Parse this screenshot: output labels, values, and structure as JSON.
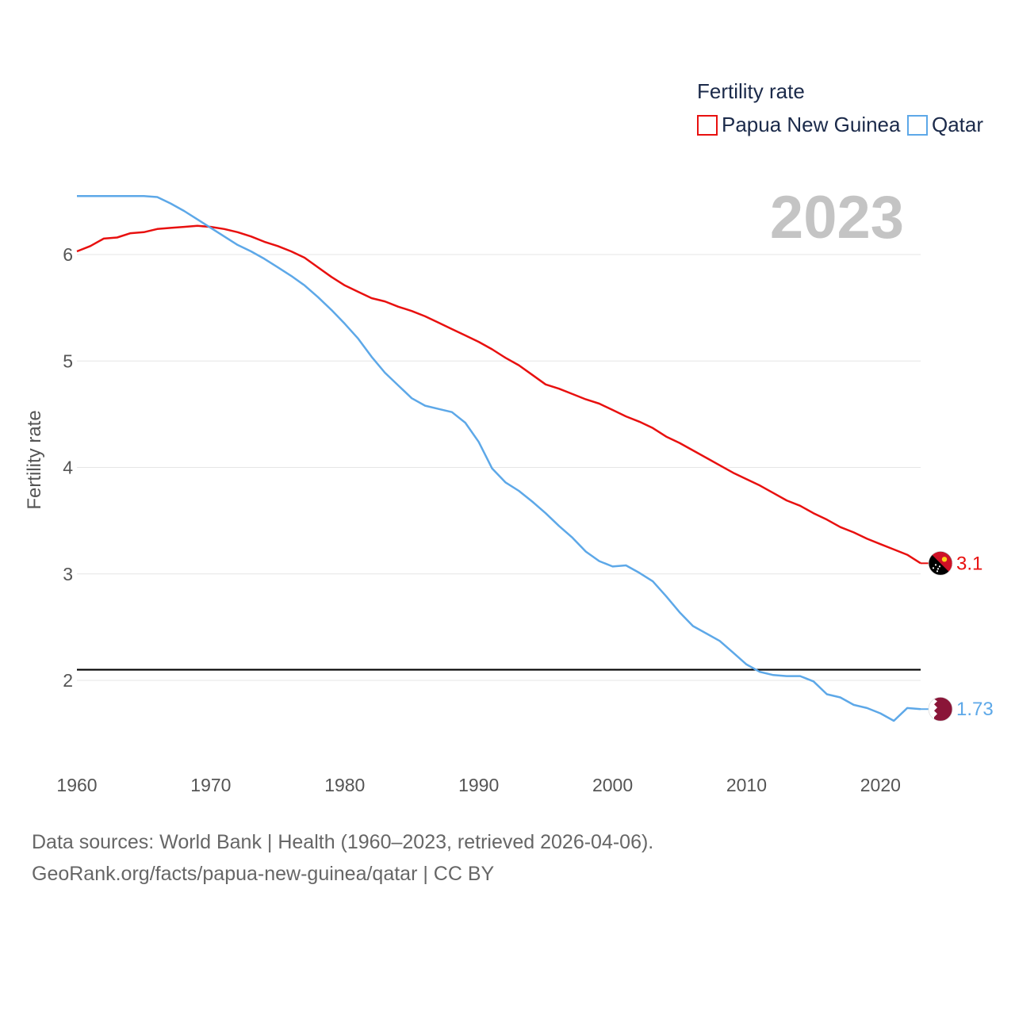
{
  "chart_data": {
    "type": "line",
    "title": "",
    "ylabel": "Fertility rate",
    "xlabel": "",
    "xlim": [
      1960,
      2023
    ],
    "ylim": [
      1.3,
      6.8
    ],
    "x_ticks": [
      1960,
      1970,
      1980,
      1990,
      2000,
      2010,
      2020
    ],
    "y_ticks": [
      2,
      3,
      4,
      5,
      6
    ],
    "year_display": "2023",
    "reference_line": {
      "value": 2.1,
      "color": "#000000"
    },
    "legend": {
      "title": "Fertility rate",
      "placement": "top-right"
    },
    "x": [
      1960,
      1961,
      1962,
      1963,
      1964,
      1965,
      1966,
      1967,
      1968,
      1969,
      1970,
      1971,
      1972,
      1973,
      1974,
      1975,
      1976,
      1977,
      1978,
      1979,
      1980,
      1981,
      1982,
      1983,
      1984,
      1985,
      1986,
      1987,
      1988,
      1989,
      1990,
      1991,
      1992,
      1993,
      1994,
      1995,
      1996,
      1997,
      1998,
      1999,
      2000,
      2001,
      2002,
      2003,
      2004,
      2005,
      2006,
      2007,
      2008,
      2009,
      2010,
      2011,
      2012,
      2013,
      2014,
      2015,
      2016,
      2017,
      2018,
      2019,
      2020,
      2021,
      2022,
      2023
    ],
    "series": [
      {
        "name": "Papua New Guinea",
        "color": "#e8100f",
        "end_label": "3.1",
        "flag": "papua-new-guinea-flag",
        "values": [
          6.03,
          6.08,
          6.15,
          6.16,
          6.2,
          6.21,
          6.24,
          6.25,
          6.26,
          6.27,
          6.26,
          6.24,
          6.21,
          6.17,
          6.12,
          6.08,
          6.03,
          5.97,
          5.88,
          5.79,
          5.71,
          5.65,
          5.59,
          5.56,
          5.51,
          5.47,
          5.42,
          5.36,
          5.3,
          5.24,
          5.18,
          5.11,
          5.03,
          4.96,
          4.87,
          4.78,
          4.74,
          4.69,
          4.64,
          4.6,
          4.54,
          4.48,
          4.43,
          4.37,
          4.29,
          4.23,
          4.16,
          4.09,
          4.02,
          3.95,
          3.89,
          3.83,
          3.76,
          3.69,
          3.64,
          3.57,
          3.51,
          3.44,
          3.39,
          3.33,
          3.28,
          3.23,
          3.18,
          3.1
        ]
      },
      {
        "name": "Qatar",
        "color": "#5da8e8",
        "end_label": "1.73",
        "flag": "qatar-flag",
        "values": [
          6.55,
          6.55,
          6.55,
          6.55,
          6.55,
          6.55,
          6.54,
          6.48,
          6.41,
          6.33,
          6.25,
          6.17,
          6.09,
          6.03,
          5.96,
          5.88,
          5.8,
          5.71,
          5.6,
          5.48,
          5.35,
          5.21,
          5.04,
          4.89,
          4.77,
          4.65,
          4.58,
          4.55,
          4.52,
          4.42,
          4.24,
          3.99,
          3.86,
          3.78,
          3.68,
          3.57,
          3.45,
          3.34,
          3.21,
          3.12,
          3.07,
          3.08,
          3.01,
          2.93,
          2.79,
          2.64,
          2.51,
          2.44,
          2.37,
          2.26,
          2.15,
          2.08,
          2.05,
          2.04,
          2.04,
          1.99,
          1.87,
          1.84,
          1.77,
          1.74,
          1.69,
          1.62,
          1.74,
          1.73
        ]
      }
    ]
  },
  "source": {
    "line1": "Data sources: World Bank | Health (1960–2023, retrieved 2026-04-06).",
    "line2": "GeoRank.org/facts/papua-new-guinea/qatar | CC BY"
  }
}
